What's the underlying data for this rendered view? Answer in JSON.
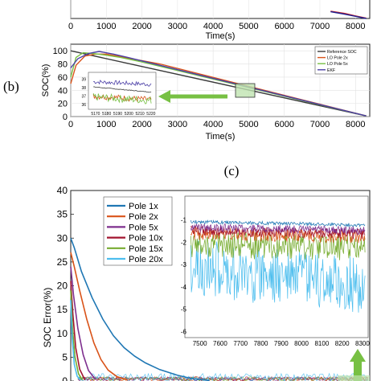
{
  "panel_b_label": "(b)",
  "panel_c_label": "(c)",
  "chart_data": [
    {
      "id": "top_partial",
      "type": "line",
      "xlabel": "Time(s)",
      "xticks": [
        0,
        1000,
        2000,
        3000,
        4000,
        5000,
        6000,
        7000,
        8000
      ],
      "xlim": [
        0,
        8400
      ],
      "series": [
        {
          "color": "#d62728",
          "x": [
            7300,
            7700,
            8000,
            8300
          ],
          "y": [
            1,
            0.7,
            0.35,
            0.05
          ]
        },
        {
          "color": "#1f1f8f",
          "x": [
            7300,
            7700,
            8000,
            8300
          ],
          "y": [
            0.95,
            0.6,
            0.3,
            0.0
          ]
        }
      ]
    },
    {
      "id": "b",
      "type": "line",
      "ylabel": "SOC(%)",
      "xlabel": "Time(s)",
      "xlim": [
        0,
        8400
      ],
      "ylim": [
        0,
        110
      ],
      "xticks": [
        0,
        1000,
        2000,
        3000,
        4000,
        5000,
        6000,
        7000,
        8000
      ],
      "yticks": [
        0,
        20,
        40,
        60,
        80,
        100
      ],
      "legend_position": "top-right",
      "grid": true,
      "series": [
        {
          "name": "Reference SOC",
          "color": "#3a3a3a",
          "x": [
            0,
            8300
          ],
          "y": [
            100,
            1
          ]
        },
        {
          "name": "LO Pole 2x",
          "color": "#d95319",
          "x": [
            0,
            150,
            400,
            700,
            1000,
            1400,
            1800,
            2500,
            8300
          ],
          "y": [
            50,
            78,
            92,
            95,
            95,
            91,
            87,
            80,
            1
          ]
        },
        {
          "name": "LO Pole 5x",
          "color": "#77c043",
          "x": [
            0,
            150,
            350,
            600,
            900,
            1400,
            2000,
            8300
          ],
          "y": [
            60,
            90,
            97,
            96,
            94,
            90,
            83,
            1
          ]
        },
        {
          "name": "EKF",
          "color": "#4b3fa6",
          "x": [
            0,
            200,
            500,
            800,
            1200,
            1600,
            8300
          ],
          "y": [
            74,
            88,
            96,
            99,
            95,
            90,
            1
          ]
        }
      ],
      "inset": {
        "xticks": [
          5170,
          5180,
          5190,
          5200,
          5210,
          5220
        ],
        "yticks": [
          36,
          37,
          38,
          39
        ],
        "xlim": [
          5165,
          5223
        ],
        "ylim": [
          35.6,
          39.6
        ]
      }
    },
    {
      "id": "c",
      "type": "line",
      "ylabel": "SOC Error(%)",
      "ylim": [
        0,
        40
      ],
      "yticks": [
        0,
        5,
        10,
        15,
        20,
        25,
        30,
        35,
        40
      ],
      "xlim": [
        0,
        8400
      ],
      "legend_position": "top-left",
      "series": [
        {
          "name": "Pole 1x",
          "color": "#1f77b4",
          "x": [
            0,
            100,
            300,
            600,
            900,
            1200,
            1500,
            1800,
            2100,
            2500,
            3000,
            3400,
            3900
          ],
          "y": [
            30,
            28,
            23,
            17.5,
            13,
            9.5,
            7,
            5.2,
            3.8,
            2.4,
            1.2,
            0.5,
            0.1
          ]
        },
        {
          "name": "Pole 2x",
          "color": "#d95319",
          "x": [
            0,
            100,
            250,
            450,
            650,
            850,
            1050,
            1300,
            1600
          ],
          "y": [
            27,
            24,
            19,
            13,
            8,
            4.5,
            2.3,
            0.9,
            0.2
          ]
        },
        {
          "name": "Pole 5x",
          "color": "#7e2f8e",
          "x": [
            0,
            80,
            200,
            350,
            500,
            700
          ],
          "y": [
            24,
            18,
            11,
            5.5,
            2.2,
            0.3
          ]
        },
        {
          "name": "Pole 10x",
          "color": "#a2142f",
          "x": [
            0,
            60,
            140,
            250,
            400
          ],
          "y": [
            21,
            14,
            7,
            2.5,
            0.2
          ]
        },
        {
          "name": "Pole 15x",
          "color": "#77ac30",
          "x": [
            0,
            50,
            120,
            220,
            330
          ],
          "y": [
            19,
            11,
            5,
            1.5,
            0.2
          ]
        },
        {
          "name": "Pole 20x",
          "color": "#4dbeee",
          "x": [
            0,
            40,
            100,
            180,
            280
          ],
          "y": [
            17,
            9,
            3.5,
            1,
            0.2
          ]
        }
      ],
      "inset": {
        "xticks": [
          7500,
          7600,
          7700,
          7800,
          7900,
          8000,
          8100,
          8200,
          8300
        ],
        "yticks": [
          -6,
          -5,
          -4,
          -3,
          -2,
          -1
        ],
        "xlim": [
          7450,
          8320
        ],
        "ylim": [
          -6.2,
          0
        ]
      }
    }
  ]
}
